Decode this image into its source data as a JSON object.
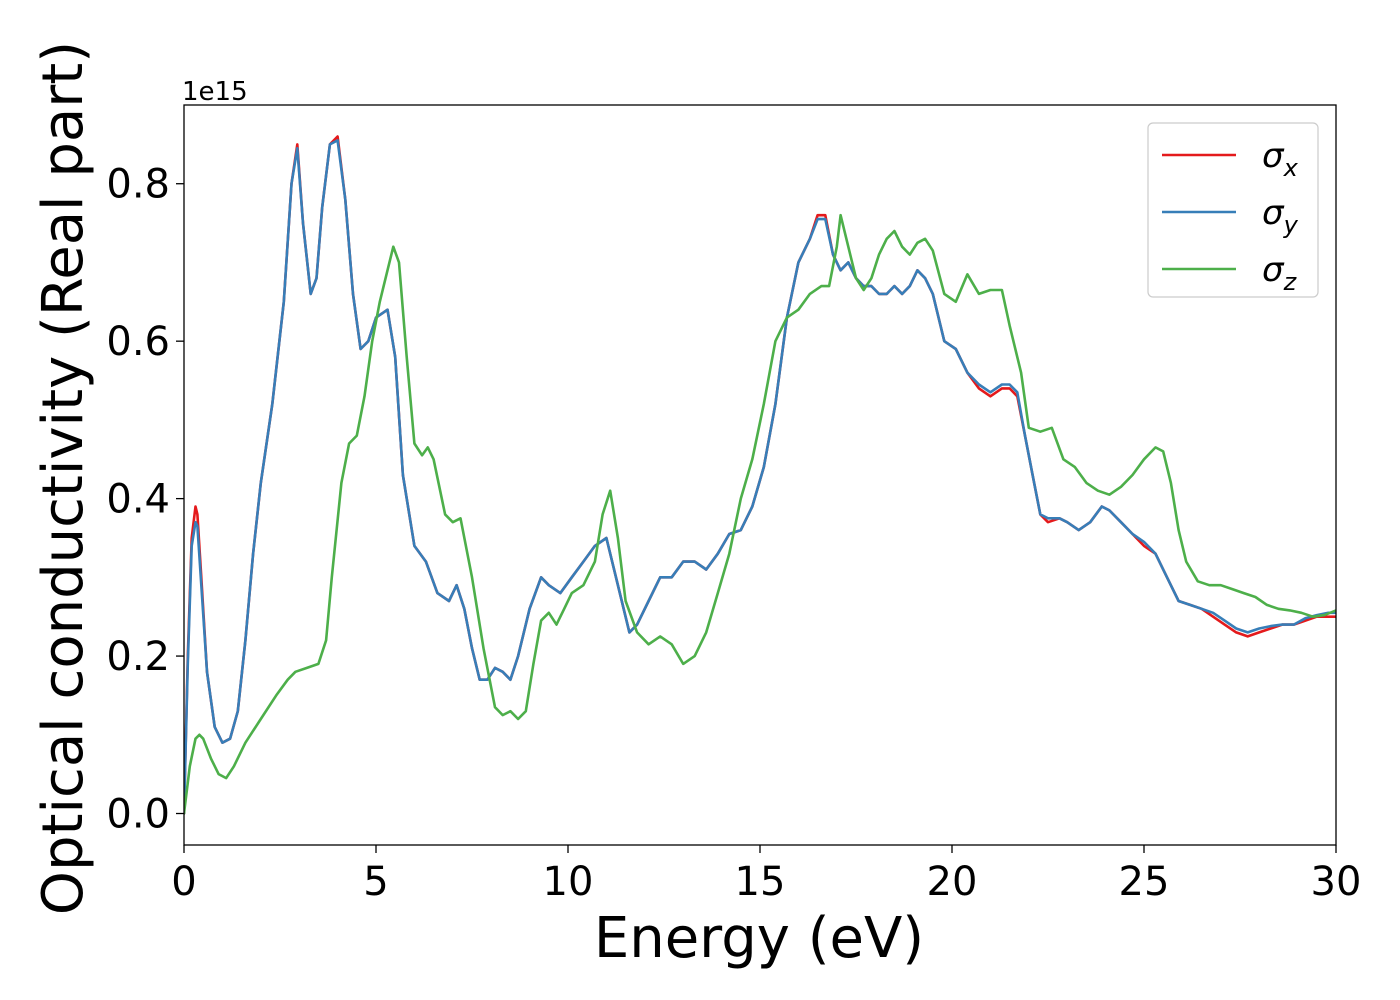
{
  "chart_data": {
    "type": "line",
    "xlabel": "Energy (eV)",
    "ylabel": "Optical conductivity (Real part)",
    "y_offset_text": "1e15",
    "xlim": [
      0,
      30
    ],
    "ylim": [
      -0.04,
      0.9
    ],
    "xticks": [
      0,
      5,
      10,
      15,
      20,
      25,
      30
    ],
    "xtick_labels": [
      "0",
      "5",
      "10",
      "15",
      "20",
      "25",
      "30"
    ],
    "yticks": [
      0.0,
      0.2,
      0.4,
      0.6,
      0.8
    ],
    "ytick_labels": [
      "0.0",
      "0.2",
      "0.4",
      "0.6",
      "0.8"
    ],
    "grid": false,
    "legend_position": "top-right",
    "series": [
      {
        "name": "σx",
        "base": "σ",
        "sub": "x",
        "color": "#e41a1c",
        "x": [
          0,
          0.1,
          0.2,
          0.3,
          0.35,
          0.45,
          0.6,
          0.8,
          1.0,
          1.2,
          1.4,
          1.6,
          1.8,
          2.0,
          2.3,
          2.6,
          2.8,
          2.95,
          3.1,
          3.3,
          3.45,
          3.6,
          3.8,
          4.0,
          4.2,
          4.4,
          4.6,
          4.8,
          5.0,
          5.3,
          5.5,
          5.7,
          6.0,
          6.3,
          6.6,
          6.9,
          7.1,
          7.3,
          7.5,
          7.7,
          7.9,
          8.1,
          8.3,
          8.5,
          8.7,
          9.0,
          9.3,
          9.5,
          9.8,
          10.1,
          10.4,
          10.7,
          11.0,
          11.3,
          11.6,
          11.8,
          12.1,
          12.4,
          12.7,
          13.0,
          13.3,
          13.6,
          13.9,
          14.2,
          14.5,
          14.8,
          15.1,
          15.4,
          15.7,
          16.0,
          16.3,
          16.5,
          16.7,
          16.9,
          17.1,
          17.3,
          17.5,
          17.7,
          17.9,
          18.1,
          18.3,
          18.5,
          18.7,
          18.9,
          19.1,
          19.3,
          19.5,
          19.8,
          20.1,
          20.4,
          20.7,
          21.0,
          21.3,
          21.5,
          21.7,
          21.9,
          22.1,
          22.3,
          22.5,
          22.8,
          23.0,
          23.3,
          23.6,
          23.9,
          24.1,
          24.4,
          24.7,
          25.0,
          25.3,
          25.6,
          25.9,
          26.2,
          26.5,
          26.8,
          27.1,
          27.4,
          27.7,
          28.0,
          28.3,
          28.6,
          28.9,
          29.2,
          29.5,
          29.8,
          30.0
        ],
        "y": [
          0.0,
          0.2,
          0.35,
          0.39,
          0.38,
          0.3,
          0.18,
          0.11,
          0.09,
          0.095,
          0.13,
          0.22,
          0.33,
          0.42,
          0.52,
          0.65,
          0.8,
          0.85,
          0.75,
          0.66,
          0.68,
          0.77,
          0.85,
          0.86,
          0.78,
          0.66,
          0.59,
          0.6,
          0.63,
          0.64,
          0.58,
          0.43,
          0.34,
          0.32,
          0.28,
          0.27,
          0.29,
          0.26,
          0.21,
          0.17,
          0.17,
          0.185,
          0.18,
          0.17,
          0.2,
          0.26,
          0.3,
          0.29,
          0.28,
          0.3,
          0.32,
          0.34,
          0.35,
          0.29,
          0.23,
          0.24,
          0.27,
          0.3,
          0.3,
          0.32,
          0.32,
          0.31,
          0.33,
          0.355,
          0.36,
          0.39,
          0.44,
          0.52,
          0.63,
          0.7,
          0.73,
          0.76,
          0.76,
          0.71,
          0.69,
          0.7,
          0.68,
          0.67,
          0.67,
          0.66,
          0.66,
          0.67,
          0.66,
          0.67,
          0.69,
          0.68,
          0.66,
          0.6,
          0.59,
          0.56,
          0.54,
          0.53,
          0.54,
          0.54,
          0.53,
          0.48,
          0.43,
          0.38,
          0.37,
          0.375,
          0.37,
          0.36,
          0.37,
          0.39,
          0.385,
          0.37,
          0.355,
          0.34,
          0.33,
          0.3,
          0.27,
          0.265,
          0.26,
          0.25,
          0.24,
          0.23,
          0.225,
          0.23,
          0.235,
          0.24,
          0.24,
          0.245,
          0.25,
          0.25,
          0.25
        ]
      },
      {
        "name": "σy",
        "base": "σ",
        "sub": "y",
        "color": "#377eb8",
        "x": [
          0,
          0.1,
          0.2,
          0.3,
          0.35,
          0.45,
          0.6,
          0.8,
          1.0,
          1.2,
          1.4,
          1.6,
          1.8,
          2.0,
          2.3,
          2.6,
          2.8,
          2.95,
          3.1,
          3.3,
          3.45,
          3.6,
          3.8,
          4.0,
          4.2,
          4.4,
          4.6,
          4.8,
          5.0,
          5.3,
          5.5,
          5.7,
          6.0,
          6.3,
          6.6,
          6.9,
          7.1,
          7.3,
          7.5,
          7.7,
          7.9,
          8.1,
          8.3,
          8.5,
          8.7,
          9.0,
          9.3,
          9.5,
          9.8,
          10.1,
          10.4,
          10.7,
          11.0,
          11.3,
          11.6,
          11.8,
          12.1,
          12.4,
          12.7,
          13.0,
          13.3,
          13.6,
          13.9,
          14.2,
          14.5,
          14.8,
          15.1,
          15.4,
          15.7,
          16.0,
          16.3,
          16.5,
          16.7,
          16.9,
          17.1,
          17.3,
          17.5,
          17.7,
          17.9,
          18.1,
          18.3,
          18.5,
          18.7,
          18.9,
          19.1,
          19.3,
          19.5,
          19.8,
          20.1,
          20.4,
          20.7,
          21.0,
          21.3,
          21.5,
          21.7,
          21.9,
          22.1,
          22.3,
          22.5,
          22.8,
          23.0,
          23.3,
          23.6,
          23.9,
          24.1,
          24.4,
          24.7,
          25.0,
          25.3,
          25.6,
          25.9,
          26.2,
          26.5,
          26.8,
          27.1,
          27.4,
          27.7,
          28.0,
          28.3,
          28.6,
          28.9,
          29.2,
          29.5,
          29.8,
          30.0
        ],
        "y": [
          0.0,
          0.19,
          0.34,
          0.37,
          0.365,
          0.29,
          0.18,
          0.11,
          0.09,
          0.095,
          0.13,
          0.22,
          0.33,
          0.42,
          0.52,
          0.65,
          0.8,
          0.845,
          0.75,
          0.66,
          0.68,
          0.77,
          0.85,
          0.855,
          0.78,
          0.66,
          0.59,
          0.6,
          0.63,
          0.64,
          0.58,
          0.43,
          0.34,
          0.32,
          0.28,
          0.27,
          0.29,
          0.26,
          0.21,
          0.17,
          0.17,
          0.185,
          0.18,
          0.17,
          0.2,
          0.26,
          0.3,
          0.29,
          0.28,
          0.3,
          0.32,
          0.34,
          0.35,
          0.29,
          0.23,
          0.24,
          0.27,
          0.3,
          0.3,
          0.32,
          0.32,
          0.31,
          0.33,
          0.355,
          0.36,
          0.39,
          0.44,
          0.52,
          0.63,
          0.7,
          0.73,
          0.755,
          0.755,
          0.71,
          0.69,
          0.7,
          0.68,
          0.67,
          0.67,
          0.66,
          0.66,
          0.67,
          0.66,
          0.67,
          0.69,
          0.68,
          0.66,
          0.6,
          0.59,
          0.56,
          0.545,
          0.535,
          0.545,
          0.545,
          0.535,
          0.48,
          0.43,
          0.38,
          0.375,
          0.375,
          0.37,
          0.36,
          0.37,
          0.39,
          0.385,
          0.37,
          0.355,
          0.345,
          0.33,
          0.3,
          0.27,
          0.265,
          0.26,
          0.255,
          0.245,
          0.235,
          0.23,
          0.235,
          0.238,
          0.24,
          0.24,
          0.248,
          0.252,
          0.255,
          0.255
        ]
      },
      {
        "name": "σz",
        "base": "σ",
        "sub": "z",
        "color": "#4daf4a",
        "x": [
          0,
          0.15,
          0.3,
          0.4,
          0.5,
          0.7,
          0.9,
          1.1,
          1.3,
          1.6,
          2.0,
          2.4,
          2.7,
          2.9,
          3.2,
          3.5,
          3.7,
          3.85,
          4.1,
          4.3,
          4.5,
          4.7,
          4.9,
          5.1,
          5.3,
          5.45,
          5.6,
          5.8,
          6.0,
          6.2,
          6.35,
          6.5,
          6.8,
          7.0,
          7.2,
          7.5,
          7.8,
          8.1,
          8.3,
          8.5,
          8.7,
          8.9,
          9.1,
          9.3,
          9.5,
          9.7,
          9.9,
          10.1,
          10.4,
          10.7,
          10.9,
          11.1,
          11.3,
          11.5,
          11.8,
          12.1,
          12.4,
          12.7,
          13.0,
          13.3,
          13.6,
          13.9,
          14.2,
          14.5,
          14.8,
          15.1,
          15.4,
          15.7,
          16.0,
          16.3,
          16.6,
          16.8,
          17.0,
          17.1,
          17.3,
          17.5,
          17.7,
          17.9,
          18.1,
          18.3,
          18.5,
          18.7,
          18.9,
          19.1,
          19.3,
          19.5,
          19.8,
          20.1,
          20.4,
          20.7,
          21.0,
          21.3,
          21.5,
          21.8,
          22.0,
          22.3,
          22.6,
          22.9,
          23.2,
          23.5,
          23.8,
          24.1,
          24.4,
          24.7,
          25.0,
          25.3,
          25.5,
          25.7,
          25.9,
          26.1,
          26.4,
          26.7,
          27.0,
          27.3,
          27.6,
          27.9,
          28.2,
          28.5,
          28.8,
          29.1,
          29.4,
          29.7,
          30.0
        ],
        "y": [
          0.0,
          0.06,
          0.095,
          0.1,
          0.095,
          0.07,
          0.05,
          0.045,
          0.06,
          0.09,
          0.12,
          0.15,
          0.17,
          0.18,
          0.185,
          0.19,
          0.22,
          0.3,
          0.42,
          0.47,
          0.48,
          0.53,
          0.6,
          0.65,
          0.69,
          0.72,
          0.7,
          0.58,
          0.47,
          0.455,
          0.465,
          0.45,
          0.38,
          0.37,
          0.375,
          0.3,
          0.21,
          0.135,
          0.125,
          0.13,
          0.12,
          0.13,
          0.19,
          0.245,
          0.255,
          0.24,
          0.26,
          0.28,
          0.29,
          0.32,
          0.38,
          0.41,
          0.35,
          0.27,
          0.23,
          0.215,
          0.225,
          0.215,
          0.19,
          0.2,
          0.23,
          0.28,
          0.33,
          0.4,
          0.45,
          0.52,
          0.6,
          0.63,
          0.64,
          0.66,
          0.67,
          0.67,
          0.72,
          0.76,
          0.72,
          0.68,
          0.665,
          0.68,
          0.71,
          0.73,
          0.74,
          0.72,
          0.71,
          0.725,
          0.73,
          0.715,
          0.66,
          0.65,
          0.685,
          0.66,
          0.665,
          0.665,
          0.62,
          0.56,
          0.49,
          0.485,
          0.49,
          0.45,
          0.44,
          0.42,
          0.41,
          0.405,
          0.415,
          0.43,
          0.45,
          0.465,
          0.46,
          0.42,
          0.36,
          0.32,
          0.295,
          0.29,
          0.29,
          0.285,
          0.28,
          0.275,
          0.265,
          0.26,
          0.258,
          0.255,
          0.25,
          0.252,
          0.258
        ]
      }
    ]
  }
}
